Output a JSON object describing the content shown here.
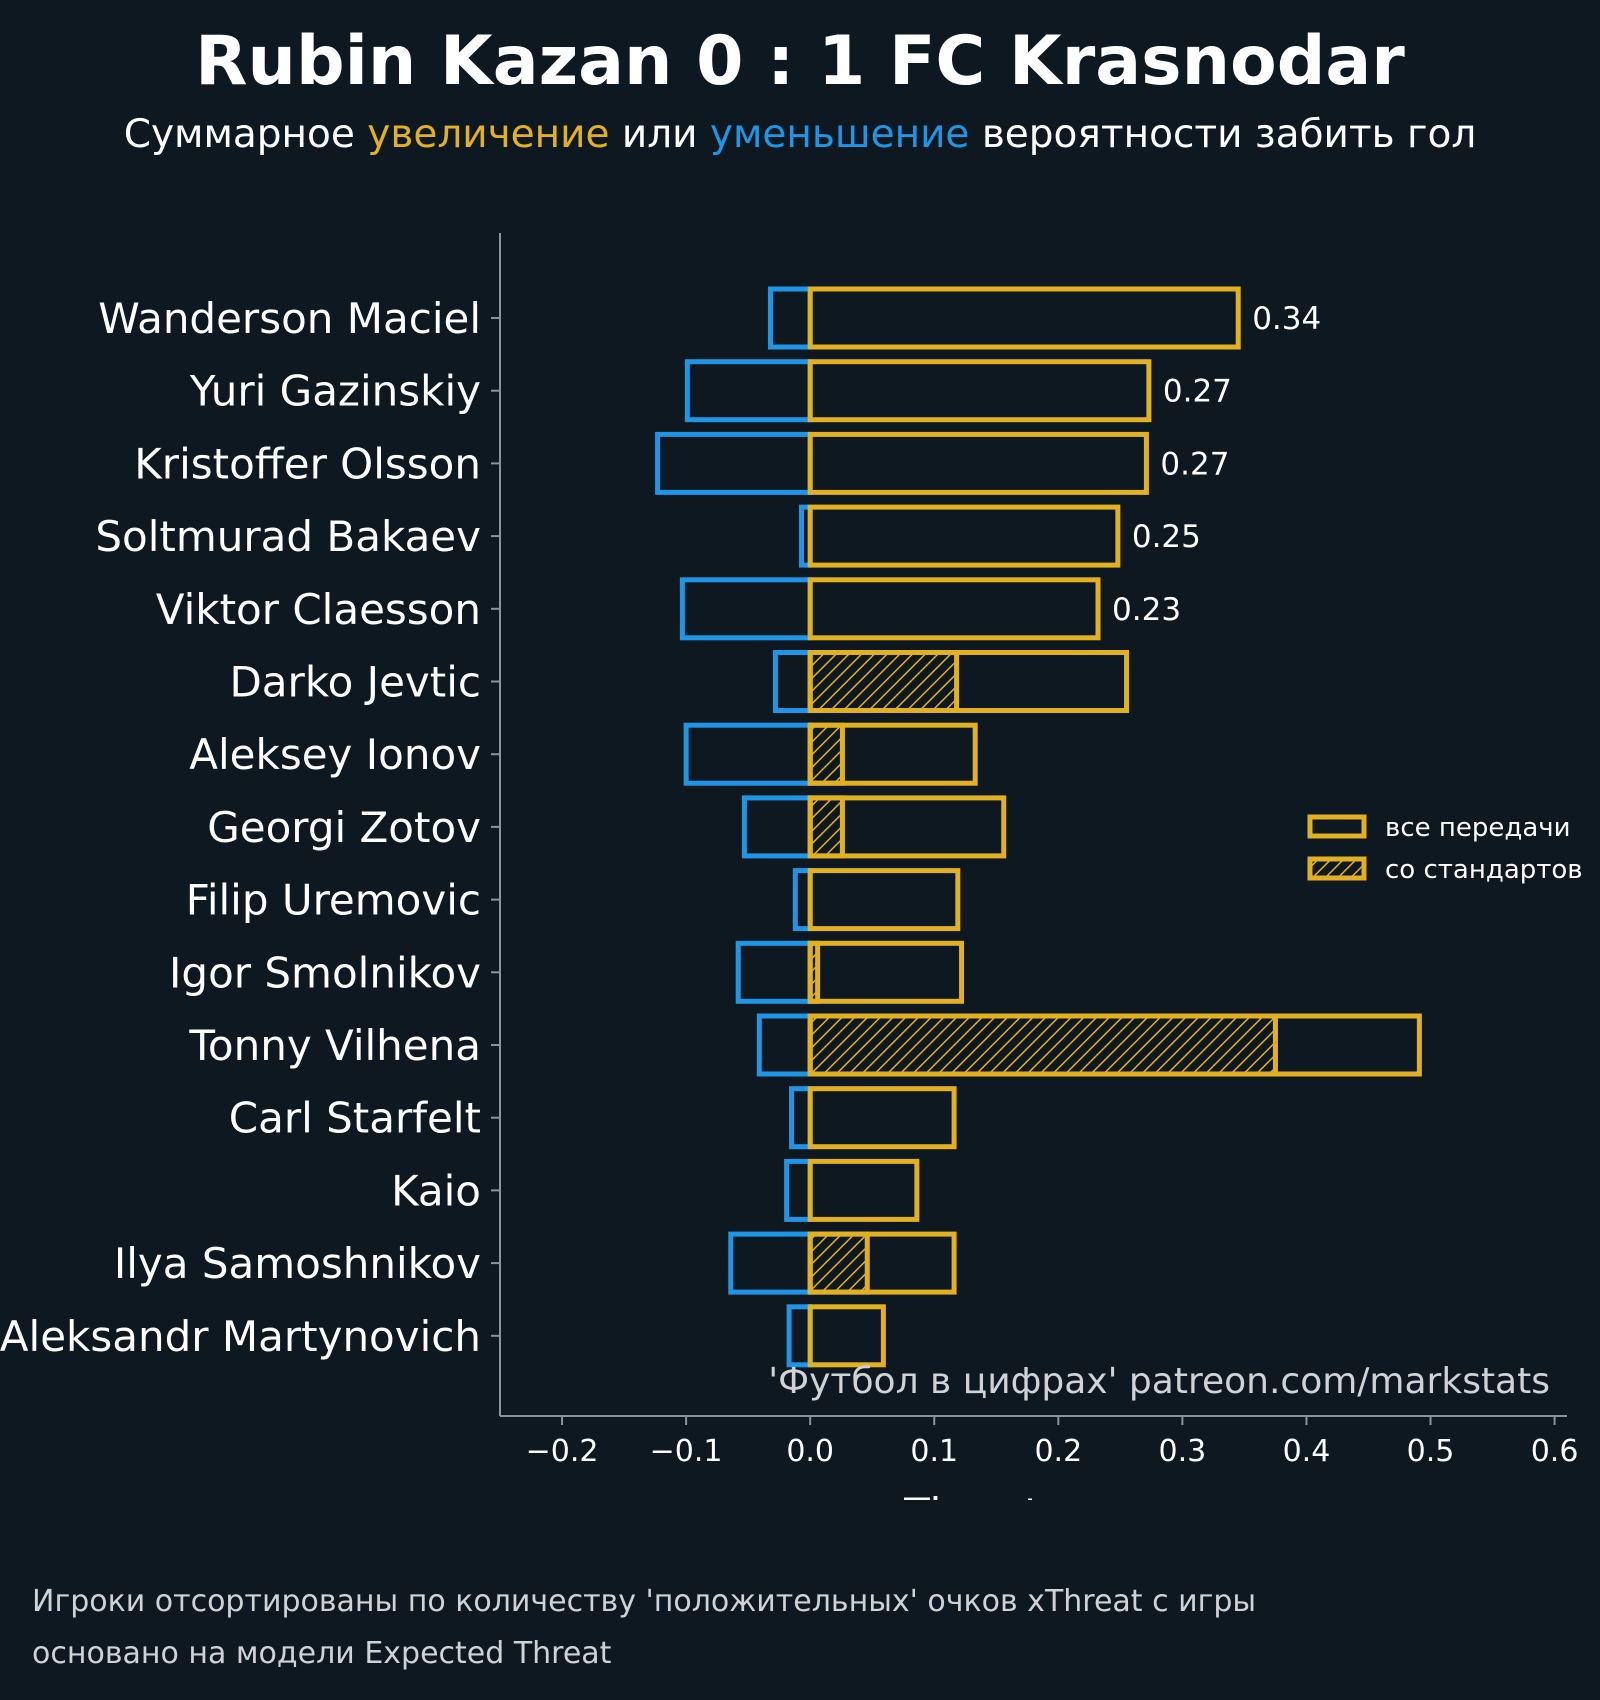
{
  "title": "Rubin Kazan 0 : 1 FC Krasnodar",
  "subtitle": {
    "part1": "Суммарное ",
    "increase": "увеличение",
    "part2": " или ",
    "decrease": "уменьшение",
    "part3": " вероятности забить гол"
  },
  "colors": {
    "background": "#0e1820",
    "positive": "#e2b023",
    "negative": "#1f95e6",
    "text": "#ffffff",
    "muted": "#cfd3d6",
    "axis": "#8a949b"
  },
  "chart_data": {
    "type": "bar",
    "orientation": "horizontal",
    "xlabel": "xThreat",
    "xlim": [
      -0.25,
      0.61
    ],
    "xticks": [
      -0.2,
      -0.1,
      0.0,
      0.1,
      0.2,
      0.3,
      0.4,
      0.5,
      0.6
    ],
    "xtick_labels": [
      "−0.2",
      "−0.1",
      "0.0",
      "0.1",
      "0.2",
      "0.3",
      "0.4",
      "0.5",
      "0.6"
    ],
    "legend": {
      "position": "right",
      "items": [
        {
          "label": "все передачи",
          "style": "outline"
        },
        {
          "label": "со стандартов",
          "style": "hatched"
        }
      ]
    },
    "watermark": "'Футбол в цифрах' patreon.com/markstats",
    "categories": [
      "Wanderson Maciel",
      "Yuri Gazinskiy",
      "Kristoffer Olsson",
      "Soltmurad Bakaev",
      "Viktor Claesson",
      "Darko Jevtic",
      "Aleksey Ionov",
      "Georgi Zotov",
      "Filip Uremovic",
      "Igor Smolnikov",
      "Tonny Vilhena",
      "Carl Starfelt",
      "Kaio",
      "Ilya Samoshnikov",
      "Aleksandr Martynovich"
    ],
    "series": [
      {
        "name": "positive",
        "values": [
          0.345,
          0.273,
          0.271,
          0.248,
          0.232,
          0.255,
          0.133,
          0.156,
          0.119,
          0.122,
          0.491,
          0.116,
          0.086,
          0.116,
          0.059
        ]
      },
      {
        "name": "negative",
        "values": [
          -0.032,
          -0.099,
          -0.123,
          -0.007,
          -0.103,
          -0.028,
          -0.1,
          -0.053,
          -0.012,
          -0.058,
          -0.041,
          -0.015,
          -0.019,
          -0.064,
          -0.017
        ]
      },
      {
        "name": "set_pieces",
        "values": [
          0,
          0,
          0,
          0,
          0,
          0.118,
          0.026,
          0.026,
          0,
          0.006,
          0.375,
          0,
          0,
          0.046,
          0
        ]
      }
    ],
    "data_labels": [
      "0.34",
      "0.27",
      "0.27",
      "0.25",
      "0.23",
      "",
      "",
      "",
      "",
      "",
      "",
      "",
      "",
      "",
      ""
    ]
  },
  "footnotes": [
    "Игроки отсортированы по количеству 'положительных' очков xThreat с игры",
    "основано на модели Expected Threat"
  ]
}
